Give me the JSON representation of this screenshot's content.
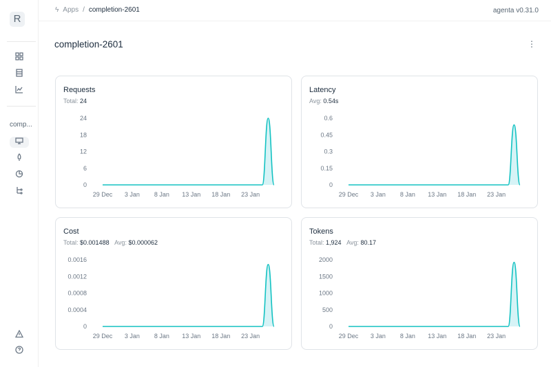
{
  "sidebar": {
    "logo": "R",
    "app_label": "comp..."
  },
  "header": {
    "breadcrumb": [
      "Apps",
      "completion-2601"
    ],
    "version": "agenta v0.31.0"
  },
  "page": {
    "title": "completion-2601",
    "more": "⋮"
  },
  "colors": {
    "line": "#13c2c2",
    "fill": "#d6f3f6"
  },
  "cards": [
    {
      "title": "Requests",
      "stats": [
        {
          "label": "Total:",
          "value": "24"
        }
      ]
    },
    {
      "title": "Latency",
      "stats": [
        {
          "label": "Avg:",
          "value": "0.54s"
        }
      ]
    },
    {
      "title": "Cost",
      "stats": [
        {
          "label": "Total:",
          "value": "$0.001488"
        },
        {
          "label": "Avg:",
          "value": "$0.000062"
        }
      ]
    },
    {
      "title": "Tokens",
      "stats": [
        {
          "label": "Total:",
          "value": "1,924"
        },
        {
          "label": "Avg:",
          "value": "80.17"
        }
      ]
    }
  ],
  "chart_data": [
    {
      "type": "area",
      "x": [
        "29 Dec",
        "30 Dec",
        "31 Dec",
        "1 Jan",
        "2 Jan",
        "3 Jan",
        "4 Jan",
        "5 Jan",
        "6 Jan",
        "7 Jan",
        "8 Jan",
        "9 Jan",
        "10 Jan",
        "11 Jan",
        "12 Jan",
        "13 Jan",
        "14 Jan",
        "15 Jan",
        "16 Jan",
        "17 Jan",
        "18 Jan",
        "19 Jan",
        "20 Jan",
        "21 Jan",
        "22 Jan",
        "23 Jan",
        "24 Jan",
        "25 Jan",
        "26 Jan",
        "27 Jan"
      ],
      "xticks": [
        "29 Dec",
        "3 Jan",
        "8 Jan",
        "13 Jan",
        "18 Jan",
        "23 Jan"
      ],
      "yticks": [
        "0",
        "6",
        "12",
        "18",
        "24"
      ],
      "ylim": [
        0,
        24
      ],
      "values": [
        0,
        0,
        0,
        0,
        0,
        0,
        0,
        0,
        0,
        0,
        0,
        0,
        0,
        0,
        0,
        0,
        0,
        0,
        0,
        0,
        0,
        0,
        0,
        0,
        0,
        0,
        0,
        0,
        24,
        0
      ]
    },
    {
      "type": "area",
      "xticks": [
        "29 Dec",
        "3 Jan",
        "8 Jan",
        "13 Jan",
        "18 Jan",
        "23 Jan"
      ],
      "yticks": [
        "0",
        "0.15",
        "0.3",
        "0.45",
        "0.6"
      ],
      "ylim": [
        0,
        0.6
      ],
      "values": [
        0,
        0,
        0,
        0,
        0,
        0,
        0,
        0,
        0,
        0,
        0,
        0,
        0,
        0,
        0,
        0,
        0,
        0,
        0,
        0,
        0,
        0,
        0,
        0,
        0,
        0,
        0,
        0,
        0.54,
        0
      ]
    },
    {
      "type": "area",
      "xticks": [
        "29 Dec",
        "3 Jan",
        "8 Jan",
        "13 Jan",
        "18 Jan",
        "23 Jan"
      ],
      "yticks": [
        "0",
        "0.0004",
        "0.0008",
        "0.0012",
        "0.0016"
      ],
      "ylim": [
        0,
        0.0016
      ],
      "values": [
        0,
        0,
        0,
        0,
        0,
        0,
        0,
        0,
        0,
        0,
        0,
        0,
        0,
        0,
        0,
        0,
        0,
        0,
        0,
        0,
        0,
        0,
        0,
        0,
        0,
        0,
        0,
        0,
        0.001488,
        0
      ]
    },
    {
      "type": "area",
      "xticks": [
        "29 Dec",
        "3 Jan",
        "8 Jan",
        "13 Jan",
        "18 Jan",
        "23 Jan"
      ],
      "yticks": [
        "0",
        "500",
        "1000",
        "1500",
        "2000"
      ],
      "ylim": [
        0,
        2000
      ],
      "values": [
        0,
        0,
        0,
        0,
        0,
        0,
        0,
        0,
        0,
        0,
        0,
        0,
        0,
        0,
        0,
        0,
        0,
        0,
        0,
        0,
        0,
        0,
        0,
        0,
        0,
        0,
        0,
        0,
        1924,
        0
      ]
    }
  ]
}
